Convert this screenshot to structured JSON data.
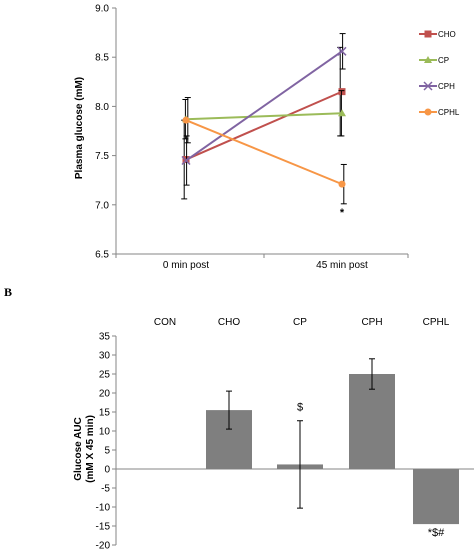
{
  "chart_data": [
    {
      "type": "line",
      "ylabel": "Plasma  glucose (mM)",
      "categories": [
        "0 min post",
        "45 min post"
      ],
      "ylim": [
        6.5,
        9.0
      ],
      "yticks": [
        "6.5",
        "7.0",
        "7.5",
        "8.0",
        "8.5",
        "9.0"
      ],
      "legend": "right",
      "series": [
        {
          "name": "CHO",
          "color": "#c0504d",
          "marker": "square",
          "values": [
            7.46,
            8.15
          ],
          "err": [
            0.4,
            0.45
          ]
        },
        {
          "name": "CP",
          "color": "#9bbb59",
          "marker": "triangle",
          "values": [
            7.87,
            7.93
          ],
          "err": [
            0.2,
            0.23
          ]
        },
        {
          "name": "CPH",
          "color": "#8064a2",
          "marker": "x",
          "values": [
            7.45,
            8.56
          ],
          "err": [
            0.25,
            0.18
          ]
        },
        {
          "name": "CPHL",
          "color": "#f79646",
          "marker": "circle",
          "values": [
            7.86,
            7.21
          ],
          "err": [
            0.23,
            0.2
          ]
        }
      ],
      "annotations": [
        {
          "text": "*",
          "category": "45 min post",
          "series": "CPHL"
        }
      ]
    },
    {
      "type": "bar",
      "panel_label": "B",
      "ylabel_line1": "Glucose AUC",
      "ylabel_line2": "(mM X 45 min)",
      "categories": [
        "CON",
        "CHO",
        "CP",
        "CPH",
        "CPHL"
      ],
      "values": [
        0,
        15.5,
        1.2,
        25,
        -14.5
      ],
      "err": [
        0,
        5,
        11.5,
        4,
        0
      ],
      "bar_color": "#7f7f7f",
      "ylim": [
        -20,
        35
      ],
      "yticks": [
        "-20",
        "-15",
        "-10",
        "-5",
        "0",
        "5",
        "10",
        "15",
        "20",
        "25",
        "30",
        "35"
      ],
      "annotations": [
        {
          "text": "$",
          "category": "CP"
        },
        {
          "text": "*$#",
          "category": "CPHL"
        }
      ]
    }
  ]
}
